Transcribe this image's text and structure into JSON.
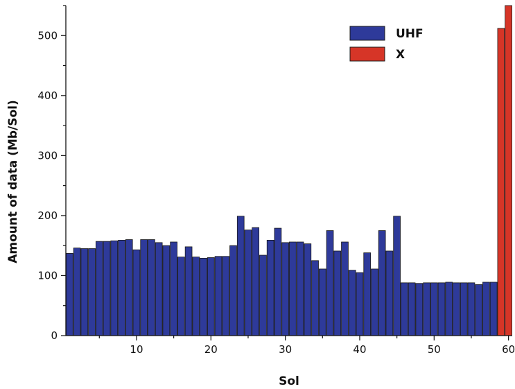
{
  "chart_data": {
    "type": "bar",
    "xlabel": "Sol",
    "ylabel": "Amount of data (Mb/Sol)",
    "xlim": [
      0.5,
      60.5
    ],
    "ylim": [
      0,
      550
    ],
    "x_ticks": [
      10,
      20,
      30,
      40,
      50,
      60
    ],
    "y_ticks": [
      0,
      100,
      200,
      300,
      400,
      500
    ],
    "grid": false,
    "legend_position": "top-right",
    "colors": {
      "UHF": "#2e3a9a",
      "X": "#d63527"
    },
    "series": [
      {
        "name": "UHF",
        "x": [
          1,
          2,
          3,
          4,
          5,
          6,
          7,
          8,
          9,
          10,
          11,
          12,
          13,
          14,
          15,
          16,
          17,
          18,
          19,
          20,
          21,
          22,
          23,
          24,
          25,
          26,
          27,
          28,
          29,
          30,
          31,
          32,
          33,
          34,
          35,
          36,
          37,
          38,
          39,
          40,
          41,
          42,
          43,
          44,
          45,
          46,
          47,
          48,
          49,
          50,
          51,
          52,
          53,
          54,
          55,
          56,
          57,
          58
        ],
        "values": [
          137,
          146,
          145,
          145,
          157,
          157,
          158,
          159,
          160,
          143,
          160,
          160,
          155,
          150,
          156,
          131,
          148,
          131,
          129,
          130,
          132,
          132,
          150,
          199,
          176,
          180,
          134,
          159,
          179,
          155,
          156,
          156,
          153,
          125,
          111,
          175,
          141,
          156,
          109,
          105,
          138,
          111,
          175,
          141,
          199,
          88,
          88,
          87,
          88,
          88,
          88,
          89,
          88,
          88,
          88,
          85,
          89,
          89
        ]
      },
      {
        "name": "X",
        "x": [
          59,
          60
        ],
        "values": [
          512,
          550
        ]
      }
    ]
  }
}
